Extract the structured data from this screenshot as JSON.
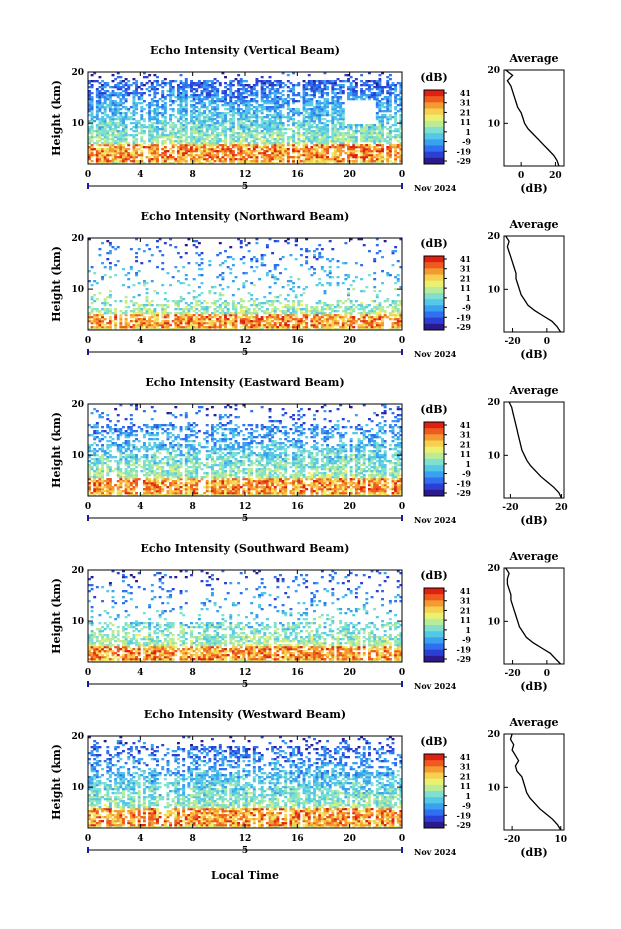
{
  "chart_data": [
    {
      "type": "heatmap",
      "title": "Echo Intensity (Vertical Beam)",
      "ylabel": "Height (km)",
      "x_ticks": [
        "0",
        "4",
        "8",
        "12",
        "16",
        "20",
        "0"
      ],
      "xlim": [
        0,
        24
      ],
      "y_ticks": [
        "20",
        "10"
      ],
      "ylim": [
        2,
        20
      ],
      "date_marker": "5",
      "date_label": "Nov 2024",
      "colorbar_label": "(dB)",
      "colorbar_ticks": [
        "41",
        "31",
        "21",
        "11",
        "1",
        "-9",
        "-19",
        "-29"
      ],
      "profile": {
        "title": "Average",
        "xlabel": "(dB)",
        "x_ticks": [
          "0",
          "20"
        ],
        "x_tick_values": [
          0,
          20
        ],
        "xlim": [
          -10,
          25
        ],
        "y_ticks": [
          "20",
          "10"
        ],
        "heights": [
          2,
          3,
          4,
          5,
          6,
          7,
          8,
          9,
          10,
          11,
          12,
          13,
          14,
          15,
          16,
          17,
          18,
          19,
          20
        ],
        "values": [
          22,
          21,
          19,
          16,
          13,
          10,
          7,
          4,
          2,
          1,
          0,
          -2,
          -3,
          -4,
          -5,
          -6,
          -8,
          -5,
          -9
        ]
      },
      "features": {
        "dense_top": 18.5,
        "band_top": 14,
        "high_low": 2.5,
        "high_high": 6,
        "gap_start": 19.5,
        "gap_end": 22,
        "gap_top": 14.5,
        "gap_bottom": 10
      }
    },
    {
      "type": "heatmap",
      "title": "Echo Intensity (Northward Beam)",
      "ylabel": "Height (km)",
      "x_ticks": [
        "0",
        "4",
        "8",
        "12",
        "16",
        "20",
        "0"
      ],
      "xlim": [
        0,
        24
      ],
      "y_ticks": [
        "20",
        "10"
      ],
      "ylim": [
        2,
        20
      ],
      "date_marker": "5",
      "date_label": "Nov 2024",
      "colorbar_label": "(dB)",
      "colorbar_ticks": [
        "41",
        "31",
        "21",
        "11",
        "1",
        "-9",
        "-19",
        "-29"
      ],
      "profile": {
        "title": "Average",
        "xlabel": "(dB)",
        "x_ticks": [
          "-20",
          "0"
        ],
        "x_tick_values": [
          -20,
          0
        ],
        "xlim": [
          -25,
          10
        ],
        "y_ticks": [
          "20",
          "10"
        ],
        "heights": [
          2,
          3,
          4,
          5,
          6,
          7,
          8,
          9,
          10,
          11,
          12,
          13,
          14,
          15,
          16,
          17,
          18,
          19,
          20
        ],
        "values": [
          8,
          6,
          3,
          -2,
          -7,
          -11,
          -13,
          -15,
          -16,
          -17,
          -18,
          -18,
          -19,
          -20,
          -21,
          -22,
          -23,
          -22,
          -24
        ]
      },
      "features": {
        "dense_top": 6.5,
        "band_top": 8,
        "high_low": 2.5,
        "high_high": 5,
        "gap_start": 0,
        "gap_end": 0,
        "gap_top": 0,
        "gap_bottom": 0
      }
    },
    {
      "type": "heatmap",
      "title": "Echo Intensity (Eastward Beam)",
      "ylabel": "Height (km)",
      "x_ticks": [
        "0",
        "4",
        "8",
        "12",
        "16",
        "20",
        "0"
      ],
      "xlim": [
        0,
        24
      ],
      "y_ticks": [
        "20",
        "10"
      ],
      "ylim": [
        2,
        20
      ],
      "date_marker": "5",
      "date_label": "Nov 2024",
      "colorbar_label": "(dB)",
      "colorbar_ticks": [
        "41",
        "31",
        "21",
        "11",
        "1",
        "-9",
        "-19",
        "-29"
      ],
      "profile": {
        "title": "Average",
        "xlabel": "(dB)",
        "x_ticks": [
          "-20",
          "20"
        ],
        "x_tick_values": [
          -20,
          20
        ],
        "xlim": [
          -25,
          22
        ],
        "y_ticks": [
          "20",
          "10"
        ],
        "heights": [
          2,
          3,
          4,
          5,
          6,
          7,
          8,
          9,
          10,
          11,
          12,
          13,
          14,
          15,
          16,
          17,
          18,
          19,
          20
        ],
        "values": [
          20,
          18,
          14,
          9,
          4,
          0,
          -4,
          -7,
          -9,
          -11,
          -12,
          -13,
          -14,
          -15,
          -16,
          -17,
          -18,
          -19,
          -21
        ]
      },
      "features": {
        "dense_top": 12,
        "band_top": 16,
        "high_low": 2.5,
        "high_high": 5.5,
        "gap_start": 0,
        "gap_end": 0,
        "gap_top": 0,
        "gap_bottom": 0
      }
    },
    {
      "type": "heatmap",
      "title": "Echo Intensity (Southward Beam)",
      "ylabel": "Height (km)",
      "x_ticks": [
        "0",
        "4",
        "8",
        "12",
        "16",
        "20",
        "0"
      ],
      "xlim": [
        0,
        24
      ],
      "y_ticks": [
        "20",
        "10"
      ],
      "ylim": [
        2,
        20
      ],
      "date_marker": "5",
      "date_label": "Nov 2024",
      "colorbar_label": "(dB)",
      "colorbar_ticks": [
        "41",
        "31",
        "21",
        "11",
        "1",
        "-9",
        "-19",
        "-29"
      ],
      "profile": {
        "title": "Average",
        "xlabel": "(dB)",
        "x_ticks": [
          "-20",
          "0"
        ],
        "x_tick_values": [
          -20,
          0
        ],
        "xlim": [
          -25,
          10
        ],
        "y_ticks": [
          "20",
          "10"
        ],
        "heights": [
          2,
          3,
          4,
          5,
          6,
          7,
          8,
          9,
          10,
          11,
          12,
          13,
          14,
          15,
          16,
          17,
          18,
          19,
          20
        ],
        "values": [
          8,
          5,
          2,
          -3,
          -8,
          -12,
          -14,
          -16,
          -17,
          -18,
          -19,
          -20,
          -21,
          -21,
          -22,
          -23,
          -23,
          -22,
          -24
        ]
      },
      "features": {
        "dense_top": 7,
        "band_top": 10,
        "high_low": 2.5,
        "high_high": 5,
        "gap_start": 0,
        "gap_end": 0,
        "gap_top": 0,
        "gap_bottom": 0
      }
    },
    {
      "type": "heatmap",
      "title": "Echo Intensity (Westward Beam)",
      "ylabel": "Height (km)",
      "x_ticks": [
        "0",
        "4",
        "8",
        "12",
        "16",
        "20",
        "0"
      ],
      "xlim": [
        0,
        24
      ],
      "y_ticks": [
        "20",
        "10"
      ],
      "ylim": [
        2,
        20
      ],
      "date_marker": "5",
      "date_label": "Nov 2024",
      "colorbar_label": "(dB)",
      "colorbar_ticks": [
        "41",
        "31",
        "21",
        "11",
        "1",
        "-9",
        "-19",
        "-29"
      ],
      "profile": {
        "title": "Average",
        "xlabel": "(dB)",
        "x_ticks": [
          "-20",
          "10"
        ],
        "x_tick_values": [
          -20,
          10
        ],
        "xlim": [
          -25,
          12
        ],
        "y_ticks": [
          "20",
          "10"
        ],
        "heights": [
          2,
          3,
          4,
          5,
          6,
          7,
          8,
          9,
          10,
          11,
          12,
          13,
          14,
          15,
          16,
          17,
          18,
          19,
          20
        ],
        "values": [
          10,
          8,
          5,
          1,
          -3,
          -6,
          -9,
          -11,
          -12,
          -13,
          -14,
          -17,
          -18,
          -16,
          -18,
          -20,
          -19,
          -21,
          -20
        ]
      },
      "features": {
        "dense_top": 13,
        "band_top": 18,
        "high_low": 2.5,
        "high_high": 6,
        "gap_start": 0,
        "gap_end": 0,
        "gap_top": 0,
        "gap_bottom": 0
      }
    }
  ],
  "footer": {
    "xlabel": "Local Time"
  },
  "colors": {
    "colormap": [
      "#2a1a8a",
      "#2c3fd4",
      "#2f6ff0",
      "#3aa0f0",
      "#55c8e8",
      "#7fe0d0",
      "#b8ec9a",
      "#eaf070",
      "#f8d050",
      "#f59a30",
      "#ee5a20",
      "#e02010"
    ]
  }
}
